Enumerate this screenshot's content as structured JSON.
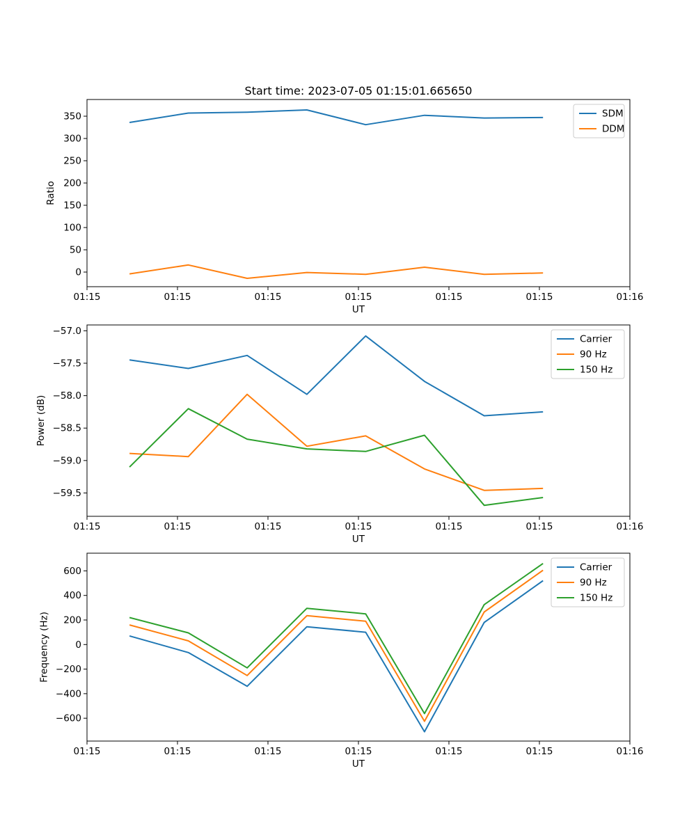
{
  "figure": {
    "title": "Start time: 2023-07-05 01:15:01.665650",
    "background": "#ffffff",
    "colors": {
      "blue": "#1f77b4",
      "orange": "#ff7f0e",
      "green": "#2ca02c"
    }
  },
  "chart_data": [
    {
      "id": "ratio",
      "type": "line",
      "xlabel": "UT",
      "ylabel": "Ratio",
      "xlim": [
        0,
        60
      ],
      "ylim": [
        -32.8,
        387.5
      ],
      "x": [
        4.7,
        11.2,
        17.7,
        24.3,
        30.8,
        37.3,
        43.9,
        50.4
      ],
      "xticks": {
        "values": [
          0,
          10,
          20,
          30,
          40,
          50,
          60
        ],
        "labels": [
          "01:15",
          "01:15",
          "01:15",
          "01:15",
          "01:15",
          "01:15",
          "01:16"
        ]
      },
      "yticks": {
        "values": [
          0,
          50,
          100,
          150,
          200,
          250,
          300,
          350
        ],
        "labels": [
          "0",
          "50",
          "100",
          "150",
          "200",
          "250",
          "300",
          "350"
        ]
      },
      "legend_position": "upper right",
      "grid": false,
      "series": [
        {
          "name": "SDM",
          "color": "#1f77b4",
          "values": [
            336,
            357,
            359,
            364,
            331,
            352,
            346,
            347
          ]
        },
        {
          "name": "DDM",
          "color": "#ff7f0e",
          "values": [
            -4,
            16,
            -14,
            -1,
            -5,
            11,
            -5,
            -2
          ]
        }
      ]
    },
    {
      "id": "power",
      "type": "line",
      "xlabel": "UT",
      "ylabel": "Power (dB)",
      "xlim": [
        0,
        60
      ],
      "ylim": [
        -59.86,
        -56.91
      ],
      "x": [
        4.7,
        11.2,
        17.7,
        24.3,
        30.8,
        37.3,
        43.9,
        50.4
      ],
      "xticks": {
        "values": [
          0,
          10,
          20,
          30,
          40,
          50,
          60
        ],
        "labels": [
          "01:15",
          "01:15",
          "01:15",
          "01:15",
          "01:15",
          "01:15",
          "01:16"
        ]
      },
      "yticks": {
        "values": [
          -59.5,
          -59.0,
          -58.5,
          -58.0,
          -57.5,
          -57.0
        ],
        "labels": [
          "−59.5",
          "−59.0",
          "−58.5",
          "−58.0",
          "−57.5",
          "−57.0"
        ]
      },
      "legend_position": "upper right",
      "grid": false,
      "series": [
        {
          "name": "Carrier",
          "color": "#1f77b4",
          "values": [
            -57.45,
            -57.58,
            -57.38,
            -57.98,
            -57.08,
            -57.78,
            -58.31,
            -58.25
          ]
        },
        {
          "name": "90 Hz",
          "color": "#ff7f0e",
          "values": [
            -58.89,
            -58.94,
            -57.98,
            -58.78,
            -58.62,
            -59.13,
            -59.46,
            -59.43
          ]
        },
        {
          "name": "150 Hz",
          "color": "#2ca02c",
          "values": [
            -59.1,
            -58.2,
            -58.67,
            -58.82,
            -58.86,
            -58.61,
            -59.69,
            -59.57
          ]
        }
      ]
    },
    {
      "id": "frequency",
      "type": "line",
      "xlabel": "UT",
      "ylabel": "Frequency (Hz)",
      "xlim": [
        0,
        60
      ],
      "ylim": [
        -786,
        744
      ],
      "x": [
        4.7,
        11.2,
        17.7,
        24.3,
        30.8,
        37.3,
        43.9,
        50.4
      ],
      "xticks": {
        "values": [
          0,
          10,
          20,
          30,
          40,
          50,
          60
        ],
        "labels": [
          "01:15",
          "01:15",
          "01:15",
          "01:15",
          "01:15",
          "01:15",
          "01:16"
        ]
      },
      "yticks": {
        "values": [
          -600,
          -400,
          -200,
          0,
          200,
          400,
          600
        ],
        "labels": [
          "−600",
          "−400",
          "−200",
          "0",
          "200",
          "400",
          "600"
        ]
      },
      "legend_position": "upper right",
      "grid": false,
      "series": [
        {
          "name": "Carrier",
          "color": "#1f77b4",
          "values": [
            70,
            -65,
            -340,
            145,
            100,
            -710,
            180,
            520
          ]
        },
        {
          "name": "90 Hz",
          "color": "#ff7f0e",
          "values": [
            160,
            30,
            -252,
            235,
            190,
            -625,
            265,
            605
          ]
        },
        {
          "name": "150 Hz",
          "color": "#2ca02c",
          "values": [
            220,
            95,
            -190,
            295,
            250,
            -562,
            325,
            660
          ]
        }
      ]
    }
  ]
}
